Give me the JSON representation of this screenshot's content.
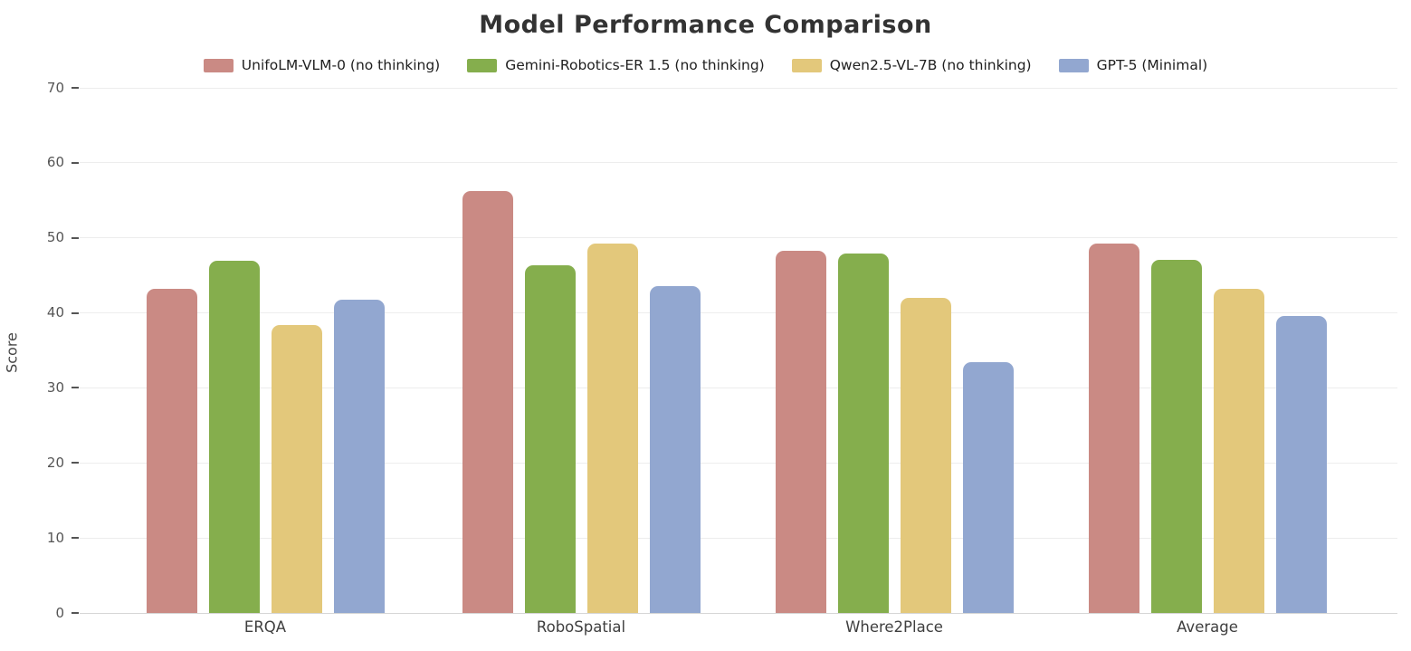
{
  "chart_data": {
    "type": "bar",
    "title": "Model Performance Comparison",
    "ylabel": "Score",
    "xlabel": "",
    "categories": [
      "ERQA",
      "RoboSpatial",
      "Where2Place",
      "Average"
    ],
    "series": [
      {
        "name": "UnifoLM-VLM-0 (no thinking)",
        "color": "#CA8A84",
        "values": [
          43.2,
          56.2,
          48.3,
          49.2
        ]
      },
      {
        "name": "Gemini-Robotics-ER 1.5 (no thinking)",
        "color": "#85AE4D",
        "values": [
          46.9,
          46.4,
          47.9,
          47.1
        ]
      },
      {
        "name": "Qwen2.5-VL-7B (no thinking)",
        "color": "#E3C87B",
        "values": [
          38.4,
          49.3,
          42.0,
          43.2
        ]
      },
      {
        "name": "GPT-5 (Minimal)",
        "color": "#92A7D0",
        "values": [
          41.8,
          43.6,
          33.4,
          39.6
        ]
      }
    ],
    "yticks": [
      0,
      10,
      20,
      30,
      40,
      50,
      60,
      70
    ],
    "ylim": [
      0,
      70
    ],
    "grid": true,
    "legend_position": "top-center"
  }
}
